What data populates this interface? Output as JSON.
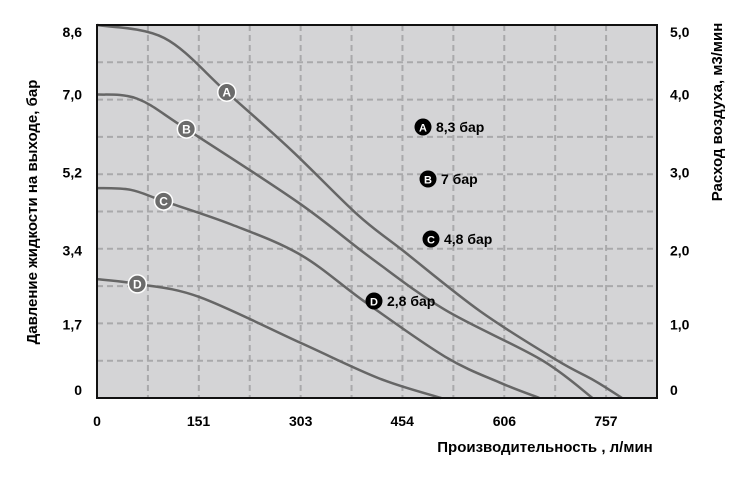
{
  "chart_data": {
    "type": "line",
    "xlabel": "Производительность , л/мин",
    "ylabel": "Давление жидкости на выходе, бар",
    "y2label": "Расход воздуха, м3/мин",
    "xlim": [
      0,
      833
    ],
    "ylim": [
      0,
      8.6
    ],
    "grid": true,
    "x_ticks": [
      0,
      151,
      303,
      454,
      606,
      757
    ],
    "x_tick_labels": [
      "0",
      "151",
      "303",
      "454",
      "606",
      "757"
    ],
    "y_ticks": [
      8.6,
      7.0,
      5.2,
      3.4,
      1.7,
      0
    ],
    "y_tick_labels": [
      "8,6",
      "7,0",
      "5,2",
      "3,4",
      "1,7",
      "0"
    ],
    "y2_tick_labels": [
      "5,0",
      "4,0",
      "3,0",
      "2,0",
      "1,0",
      "0"
    ],
    "legend_position": "center-right",
    "series": [
      {
        "name": "A",
        "legend": "8,3 бар",
        "label_at": 193,
        "x": [
          0,
          100,
          193,
          290,
          388,
          455,
          570,
          683,
          740,
          781
        ],
        "y": [
          8.6,
          8.3,
          7.05,
          5.7,
          4.22,
          3.4,
          2.0,
          0.88,
          0.4,
          0
        ]
      },
      {
        "name": "B",
        "legend": "7 бар",
        "label_at": 133,
        "x": [
          0,
          60,
          133,
          300,
          410,
          518,
          661,
          737
        ],
        "y": [
          7.0,
          6.9,
          6.2,
          4.5,
          3.2,
          2.03,
          0.88,
          0
        ]
      },
      {
        "name": "C",
        "legend": "4,8 бар",
        "label_at": 99,
        "x": [
          0,
          50,
          99,
          200,
          303,
          400,
          518,
          600,
          658
        ],
        "y": [
          4.84,
          4.8,
          4.54,
          4.0,
          3.3,
          2.2,
          0.95,
          0.35,
          0
        ]
      },
      {
        "name": "D",
        "legend": "2,8 бар",
        "label_at": 60,
        "x": [
          0,
          60,
          152,
          303,
          420,
          512
        ],
        "y": [
          2.74,
          2.63,
          2.33,
          1.27,
          0.45,
          0
        ]
      }
    ],
    "colors": {
      "plot_bg": "#d4d4d6",
      "curve": "#666666",
      "marker": "#6b6b6b",
      "legend_marker": "#000000",
      "grid": "#a9a9ab"
    }
  }
}
